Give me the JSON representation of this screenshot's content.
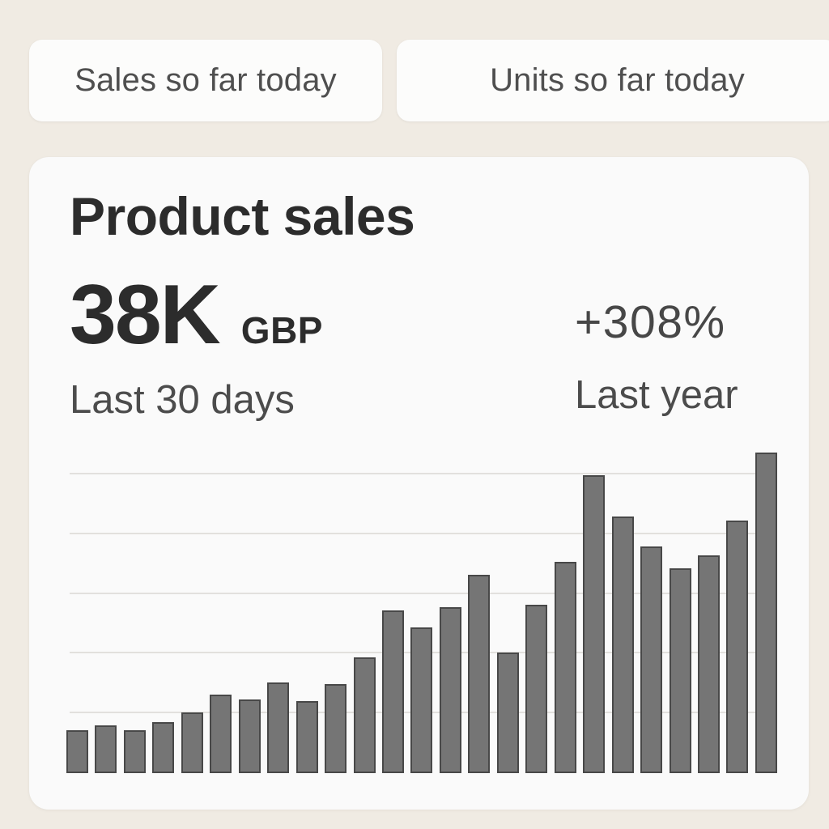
{
  "colors": {
    "background": "#f0ebe3",
    "surface": "#fafafa",
    "button_surface": "#fcfcfb",
    "title_text": "#2c2c2c",
    "metric_text": "#2c2c2c",
    "subtitle_text": "#4c4c4c",
    "delta_text": "#474747",
    "button_text": "#4f4f4f",
    "bar_fill": "#757575",
    "bar_border": "#484848",
    "gridline": "#e2e0dd"
  },
  "toolbar": {
    "buttons": [
      {
        "label": "Sales so far today"
      },
      {
        "label": "Units so far today"
      }
    ]
  },
  "card": {
    "title": "Product sales",
    "metric": {
      "value": "38K",
      "currency": "GBP",
      "period": "Last 30 days"
    },
    "comparison": {
      "delta": "+308%",
      "period": "Last year"
    }
  },
  "chart_data": {
    "type": "bar",
    "title": "",
    "xlabel": "",
    "ylabel": "",
    "legend": "none",
    "grid": "horizontal gridlines only, no axis tick labels visible",
    "x_axis_note": "25 unlabeled bars forming an upward daily sales trend",
    "value_units": "relative gridline units (no y-axis labels shown; 1.0 = one gridline interval)",
    "num_bars": 25,
    "values": [
      0.72,
      0.8,
      0.72,
      0.86,
      1.02,
      1.32,
      1.24,
      1.52,
      1.2,
      1.49,
      1.94,
      2.73,
      2.44,
      2.78,
      3.32,
      2.02,
      2.82,
      3.54,
      4.99,
      4.29,
      3.79,
      3.43,
      3.65,
      4.23,
      5.36
    ],
    "ylim": [
      0,
      5.42
    ],
    "gridlines_y": [
      1,
      2,
      3,
      4,
      5
    ],
    "bar_color": "#757575",
    "bar_border_color": "#484848",
    "gridline_color": "#e2e0dd"
  }
}
